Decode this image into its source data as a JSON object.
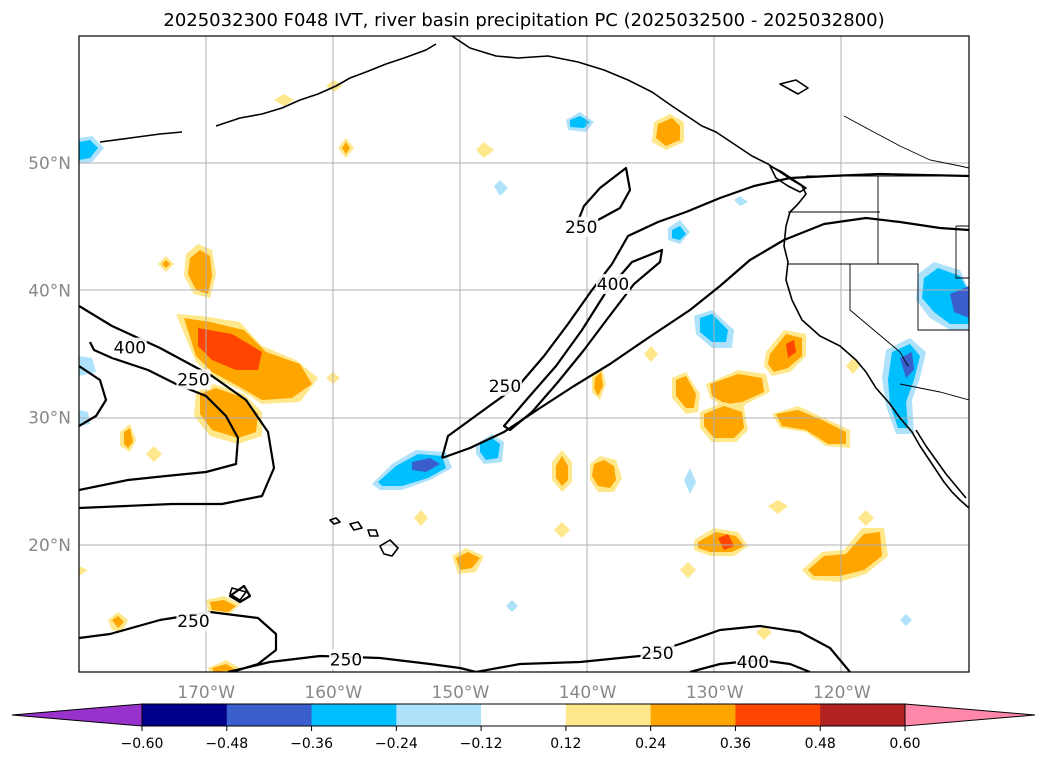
{
  "chart_data": {
    "type": "map",
    "title": "2025032300 F048 IVT, river basin precipitation PC (2025032500 - 2025032800)",
    "xlabel": "",
    "ylabel": "",
    "lon_range": [
      -180,
      -110
    ],
    "lat_range": [
      10,
      60
    ],
    "lon_ticks": [
      -170,
      -160,
      -150,
      -140,
      -130,
      -120
    ],
    "lon_tick_labels": [
      "170°W",
      "160°W",
      "150°W",
      "140°W",
      "130°W",
      "120°W"
    ],
    "lat_ticks": [
      20,
      30,
      40,
      50
    ],
    "lat_tick_labels": [
      "20°N",
      "30°N",
      "40°N",
      "50°N"
    ],
    "grid": true,
    "ivt_contour_levels": [
      250,
      400
    ],
    "ivt_contour_labels": [
      {
        "text": "250",
        "lon": -140.5,
        "lat": 45.0
      },
      {
        "text": "400",
        "lon": -138.0,
        "lat": 40.5
      },
      {
        "text": "250",
        "lon": -146.5,
        "lat": 32.5
      },
      {
        "text": "400",
        "lon": -176.0,
        "lat": 35.5
      },
      {
        "text": "250",
        "lon": -171.0,
        "lat": 33.0
      },
      {
        "text": "250",
        "lon": -171.0,
        "lat": 14.0
      },
      {
        "text": "250",
        "lon": -159.0,
        "lat": 11.0
      },
      {
        "text": "250",
        "lon": -134.5,
        "lat": 11.5
      },
      {
        "text": "400",
        "lon": -127.0,
        "lat": 10.8
      }
    ],
    "colorbar": {
      "ticks": [
        -0.6,
        -0.48,
        -0.36,
        -0.24,
        -0.12,
        0.12,
        0.24,
        0.36,
        0.48,
        0.6
      ],
      "tick_labels": [
        "−0.60",
        "−0.48",
        "−0.36",
        "−0.24",
        "−0.12",
        "0.12",
        "0.24",
        "0.36",
        "0.48",
        "0.60"
      ],
      "colors": [
        "#9932CC",
        "#00008B",
        "#3A5FCD",
        "#00BFFF",
        "#ADE2FA",
        "#FFFFFF",
        "#FFE88C",
        "#FFA500",
        "#FF4500",
        "#B22222",
        "#FF88AA"
      ],
      "extend": "both"
    }
  }
}
